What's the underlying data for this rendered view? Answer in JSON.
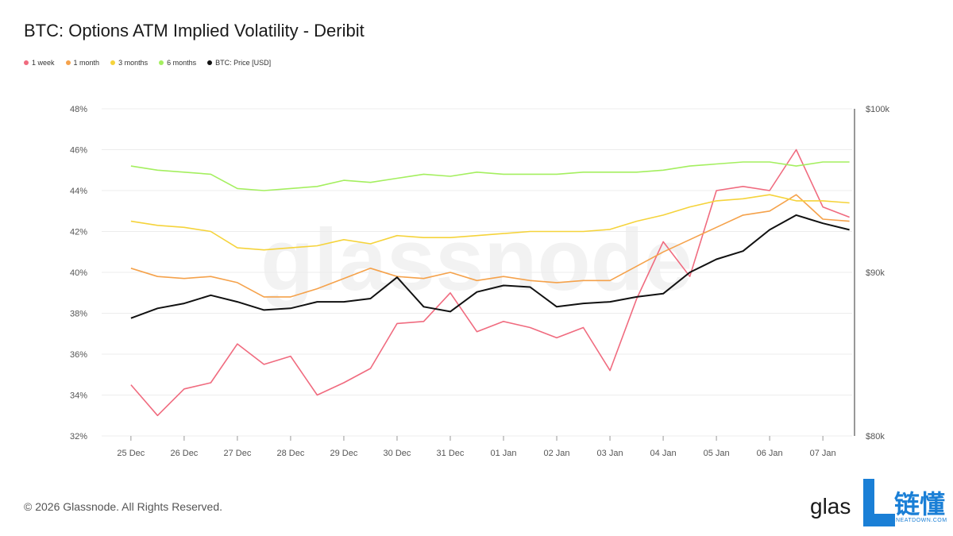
{
  "title": "BTC: Options ATM Implied Volatility - Deribit",
  "copyright": "© 2026 Glassnode. All Rights Reserved.",
  "watermark": "glassnode",
  "brand": {
    "text": "glas",
    "cn": "链懂",
    "sub": "NEATDOWN.COM",
    "color": "#1a7fd6"
  },
  "chart_data": {
    "type": "line",
    "x_ticks": [
      "25 Dec",
      "26 Dec",
      "27 Dec",
      "28 Dec",
      "29 Dec",
      "30 Dec",
      "31 Dec",
      "01 Jan",
      "02 Jan",
      "03 Jan",
      "04 Jan",
      "05 Jan",
      "06 Jan",
      "07 Jan"
    ],
    "x": [
      0,
      0.5,
      1,
      1.5,
      2,
      2.5,
      3,
      3.5,
      4,
      4.5,
      5,
      5.5,
      6,
      6.5,
      7,
      7.5,
      8,
      8.5,
      9,
      9.5,
      10,
      10.5,
      11,
      11.5,
      12,
      12.5,
      13,
      13.5
    ],
    "y_left": {
      "ticks": [
        "32%",
        "34%",
        "36%",
        "38%",
        "40%",
        "42%",
        "44%",
        "46%",
        "48%"
      ],
      "lim": [
        32,
        48
      ]
    },
    "y_right": {
      "ticks": [
        "$80k",
        "$90k",
        "$100k"
      ],
      "lim": [
        80000,
        100000
      ]
    },
    "grid": true,
    "legend_position": "top-left",
    "series": [
      {
        "name": "1 week",
        "color": "#f06b7f",
        "axis": "left",
        "values": [
          34.5,
          33.0,
          34.3,
          34.6,
          36.5,
          35.5,
          35.9,
          34.0,
          34.6,
          35.3,
          37.5,
          37.6,
          39.0,
          37.1,
          37.6,
          37.3,
          36.8,
          37.3,
          35.2,
          38.7,
          41.5,
          39.8,
          44.0,
          44.2,
          44.0,
          46.0,
          43.2,
          42.7
        ]
      },
      {
        "name": "1 month",
        "color": "#f5a24b",
        "axis": "left",
        "values": [
          40.2,
          39.8,
          39.7,
          39.8,
          39.5,
          38.8,
          38.8,
          39.2,
          39.7,
          40.2,
          39.8,
          39.7,
          40.0,
          39.6,
          39.8,
          39.6,
          39.5,
          39.6,
          39.6,
          40.3,
          41.0,
          41.6,
          42.2,
          42.8,
          43.0,
          43.8,
          42.6,
          42.5
        ]
      },
      {
        "name": "3 months",
        "color": "#f5d33b",
        "axis": "left",
        "values": [
          42.5,
          42.3,
          42.2,
          42.0,
          41.2,
          41.1,
          41.2,
          41.3,
          41.6,
          41.4,
          41.8,
          41.7,
          41.7,
          41.8,
          41.9,
          42.0,
          42.0,
          42.0,
          42.1,
          42.5,
          42.8,
          43.2,
          43.5,
          43.6,
          43.8,
          43.5,
          43.5,
          43.4
        ]
      },
      {
        "name": "6 months",
        "color": "#a4ef5f",
        "axis": "left",
        "values": [
          45.2,
          45.0,
          44.9,
          44.8,
          44.1,
          44.0,
          44.1,
          44.2,
          44.5,
          44.4,
          44.6,
          44.8,
          44.7,
          44.9,
          44.8,
          44.8,
          44.8,
          44.9,
          44.9,
          44.9,
          45.0,
          45.2,
          45.3,
          45.4,
          45.4,
          45.2,
          45.4,
          45.4
        ]
      },
      {
        "name": "BTC: Price [USD]",
        "color": "#111111",
        "axis": "right",
        "values": [
          87200,
          87800,
          88100,
          88600,
          88200,
          87700,
          87800,
          88200,
          88200,
          88400,
          89700,
          87900,
          87600,
          88800,
          89200,
          89100,
          87900,
          88100,
          88200,
          88500,
          88700,
          90000,
          90800,
          91300,
          92600,
          93500,
          93000,
          92600
        ]
      }
    ]
  }
}
